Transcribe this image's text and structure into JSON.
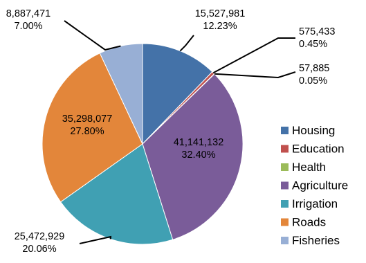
{
  "chart_data": {
    "type": "pie",
    "title": "",
    "legend_position": "right",
    "slices": [
      {
        "name": "Housing",
        "value": 15527981,
        "value_label": "15,527,981",
        "pct_label": "12.23%",
        "color": "#4472A8"
      },
      {
        "name": "Education",
        "value": 575433,
        "value_label": "575,433",
        "pct_label": "0.45%",
        "color": "#C0504D"
      },
      {
        "name": "Health",
        "value": 57885,
        "value_label": "57,885",
        "pct_label": "0.05%",
        "color": "#9BBB59"
      },
      {
        "name": "Agriculture",
        "value": 41141132,
        "value_label": "41,141,132",
        "pct_label": "32.40%",
        "color": "#7A5C99"
      },
      {
        "name": "Irrigation",
        "value": 25472929,
        "value_label": "25,472,929",
        "pct_label": "20.06%",
        "color": "#40A0B3"
      },
      {
        "name": "Roads",
        "value": 35298077,
        "value_label": "35,298,077",
        "pct_label": "27.80%",
        "color": "#E3863A"
      },
      {
        "name": "Fisheries",
        "value": 8887471,
        "value_label": "8,887,471",
        "pct_label": "7.00%",
        "color": "#98AFD5"
      }
    ]
  }
}
